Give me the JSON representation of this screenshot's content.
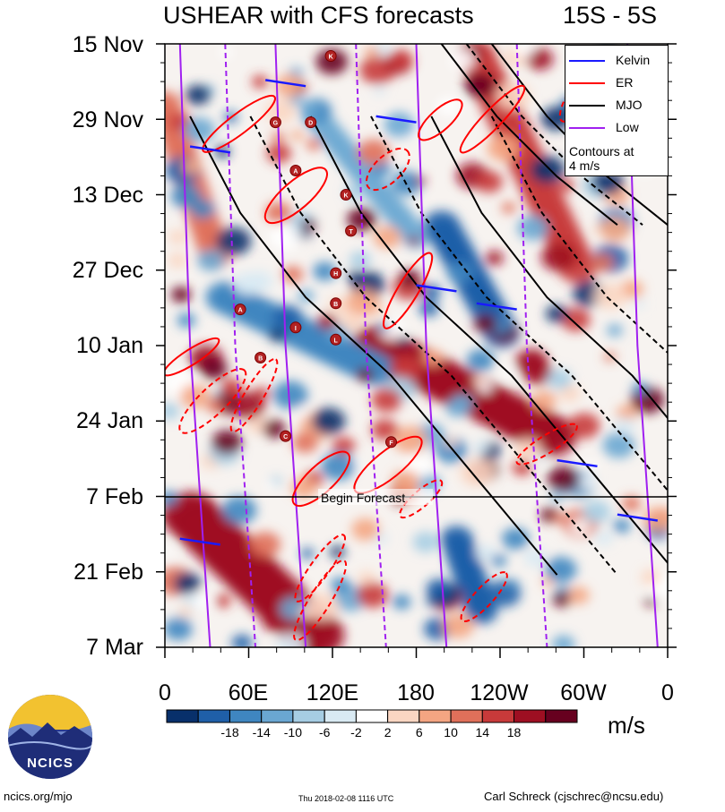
{
  "chart_data": {
    "type": "heatmap",
    "title": "USHEAR with CFS forecasts",
    "region": "15S - 5S",
    "variable": "USHEAR",
    "units": "m/s",
    "y_axis": {
      "labels": [
        "15 Nov",
        "29 Nov",
        "13 Dec",
        "27 Dec",
        "10 Jan",
        "24 Jan",
        "7 Feb",
        "21 Feb",
        "7 Mar"
      ]
    },
    "x_axis": {
      "labels": [
        "0",
        "60E",
        "120E",
        "180",
        "120W",
        "60W",
        "0"
      ],
      "range_deg_east": [
        0,
        360
      ]
    },
    "colorbar": {
      "levels": [
        -18,
        -14,
        -10,
        -6,
        -2,
        2,
        6,
        10,
        14,
        18
      ],
      "tick_labels": [
        "-18",
        "-14",
        "-10",
        "-6",
        "-2",
        "2",
        "6",
        "10",
        "14",
        "18"
      ],
      "colors": [
        "#08306b",
        "#1f5fa8",
        "#3f86c0",
        "#6aa7d2",
        "#a6cde3",
        "#d9eaf3",
        "#ffffff",
        "#fbd6c2",
        "#f4a582",
        "#e0705a",
        "#c83a3a",
        "#9e0f22",
        "#67001f"
      ]
    },
    "forecast_marker": {
      "label": "Begin Forecast",
      "date": "7 Feb"
    },
    "legend": {
      "entries": [
        {
          "name": "Kelvin",
          "color": "#1a1aff"
        },
        {
          "name": "ER",
          "color": "#ff0000"
        },
        {
          "name": "MJO",
          "color": "#000000"
        },
        {
          "name": "Low",
          "color": "#a020f0"
        }
      ],
      "note_line1": "Contours at",
      "note_line2": "4 m/s"
    },
    "storm_labels": [
      "K",
      "G",
      "D",
      "A",
      "K",
      "T",
      "H",
      "B",
      "A",
      "I",
      "L",
      "B",
      "C",
      "F"
    ]
  },
  "logo": {
    "text": "NCICS"
  },
  "footer": {
    "left": "ncics.org/mjo",
    "middle": "Thu 2018-02-08 1116 UTC",
    "right": "Carl Schreck (cjschrec@ncsu.edu)"
  }
}
